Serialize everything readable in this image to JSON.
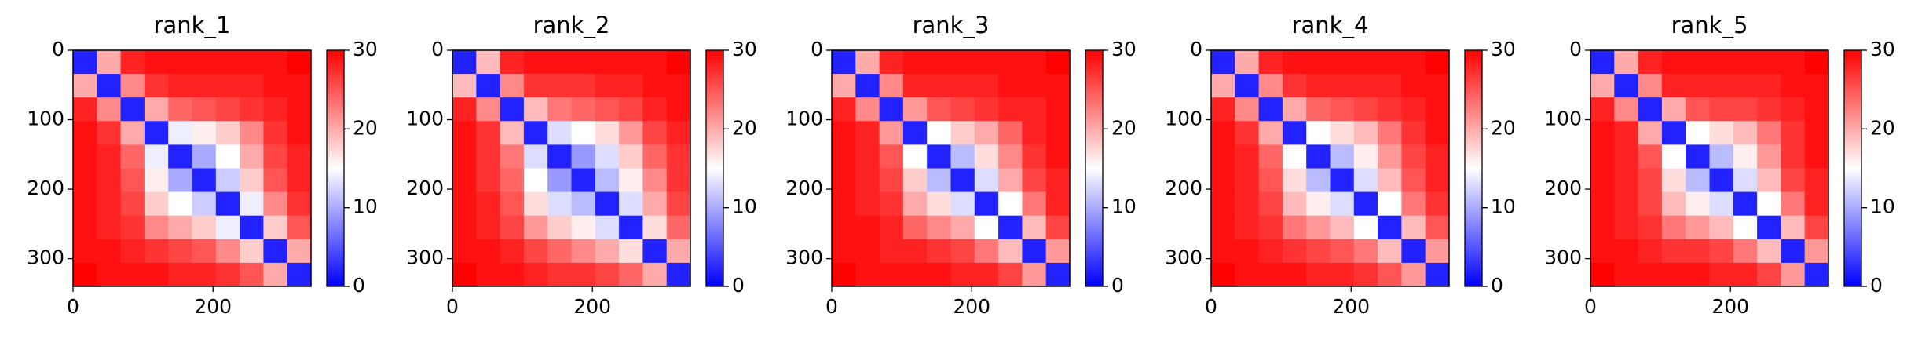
{
  "chart_data": [
    {
      "type": "heatmap",
      "title": "rank_1",
      "xlim": [
        0,
        340
      ],
      "ylim": [
        340,
        0
      ],
      "xticks": [
        0,
        200
      ],
      "yticks": [
        0,
        100,
        200,
        300
      ],
      "clim": [
        0,
        30
      ],
      "cticks": [
        0,
        10,
        20,
        30
      ],
      "colormap": "bwr",
      "matrix": [
        [
          2,
          20,
          28,
          29,
          29,
          29,
          29,
          29,
          29,
          30
        ],
        [
          20,
          2,
          22,
          27,
          28,
          28,
          28,
          28,
          29,
          29
        ],
        [
          28,
          22,
          2,
          20,
          24,
          25,
          26,
          27,
          28,
          29
        ],
        [
          29,
          27,
          20,
          2,
          14,
          16,
          18,
          22,
          27,
          29
        ],
        [
          29,
          28,
          24,
          14,
          2,
          10,
          15,
          20,
          26,
          28
        ],
        [
          29,
          28,
          25,
          16,
          10,
          2,
          12,
          18,
          25,
          28
        ],
        [
          29,
          28,
          26,
          18,
          15,
          12,
          2,
          14,
          22,
          27
        ],
        [
          29,
          28,
          27,
          22,
          20,
          18,
          14,
          2,
          18,
          25
        ],
        [
          29,
          29,
          28,
          27,
          26,
          25,
          22,
          18,
          2,
          20
        ],
        [
          30,
          29,
          29,
          29,
          28,
          28,
          27,
          25,
          20,
          2
        ]
      ]
    },
    {
      "type": "heatmap",
      "title": "rank_2",
      "xlim": [
        0,
        340
      ],
      "ylim": [
        340,
        0
      ],
      "xticks": [
        0,
        200
      ],
      "yticks": [
        0,
        100,
        200,
        300
      ],
      "clim": [
        0,
        30
      ],
      "cticks": [
        0,
        10,
        20,
        30
      ],
      "colormap": "bwr",
      "matrix": [
        [
          2,
          19,
          28,
          29,
          29,
          29,
          29,
          29,
          29,
          30
        ],
        [
          19,
          2,
          22,
          27,
          27,
          27,
          28,
          28,
          29,
          29
        ],
        [
          28,
          22,
          2,
          19,
          23,
          24,
          25,
          26,
          28,
          29
        ],
        [
          29,
          27,
          19,
          2,
          13,
          15,
          17,
          21,
          26,
          28
        ],
        [
          29,
          27,
          23,
          13,
          2,
          9,
          13,
          18,
          24,
          27
        ],
        [
          29,
          27,
          24,
          15,
          9,
          2,
          11,
          16,
          22,
          27
        ],
        [
          29,
          28,
          25,
          17,
          13,
          11,
          2,
          13,
          20,
          26
        ],
        [
          29,
          28,
          26,
          21,
          18,
          16,
          13,
          2,
          17,
          24
        ],
        [
          29,
          29,
          28,
          26,
          24,
          22,
          20,
          17,
          2,
          20
        ],
        [
          30,
          29,
          29,
          28,
          27,
          27,
          26,
          24,
          20,
          2
        ]
      ]
    },
    {
      "type": "heatmap",
      "title": "rank_3",
      "xlim": [
        0,
        340
      ],
      "ylim": [
        340,
        0
      ],
      "xticks": [
        0,
        200
      ],
      "yticks": [
        0,
        100,
        200,
        300
      ],
      "clim": [
        0,
        30
      ],
      "cticks": [
        0,
        10,
        20,
        30
      ],
      "colormap": "bwr",
      "matrix": [
        [
          2,
          20,
          28,
          29,
          29,
          29,
          29,
          29,
          29,
          30
        ],
        [
          20,
          2,
          22,
          28,
          28,
          28,
          28,
          29,
          29,
          29
        ],
        [
          28,
          22,
          2,
          21,
          25,
          26,
          27,
          28,
          28,
          29
        ],
        [
          29,
          28,
          21,
          2,
          15,
          18,
          20,
          24,
          28,
          29
        ],
        [
          29,
          28,
          25,
          15,
          2,
          11,
          17,
          22,
          27,
          29
        ],
        [
          29,
          28,
          26,
          18,
          11,
          2,
          13,
          20,
          26,
          28
        ],
        [
          29,
          28,
          27,
          20,
          17,
          13,
          2,
          15,
          23,
          28
        ],
        [
          29,
          29,
          28,
          24,
          22,
          20,
          15,
          2,
          19,
          26
        ],
        [
          29,
          29,
          28,
          28,
          27,
          26,
          23,
          19,
          2,
          21
        ],
        [
          30,
          29,
          29,
          29,
          29,
          28,
          28,
          26,
          21,
          2
        ]
      ]
    },
    {
      "type": "heatmap",
      "title": "rank_4",
      "xlim": [
        0,
        340
      ],
      "ylim": [
        340,
        0
      ],
      "xticks": [
        0,
        200
      ],
      "yticks": [
        0,
        100,
        200,
        300
      ],
      "clim": [
        0,
        30
      ],
      "cticks": [
        0,
        10,
        20,
        30
      ],
      "colormap": "bwr",
      "matrix": [
        [
          2,
          20,
          28,
          29,
          29,
          29,
          29,
          29,
          29,
          30
        ],
        [
          20,
          2,
          22,
          27,
          28,
          28,
          28,
          28,
          29,
          29
        ],
        [
          28,
          22,
          2,
          20,
          24,
          25,
          26,
          27,
          28,
          29
        ],
        [
          29,
          27,
          20,
          2,
          15,
          17,
          19,
          23,
          27,
          29
        ],
        [
          29,
          28,
          24,
          15,
          2,
          11,
          16,
          21,
          26,
          28
        ],
        [
          29,
          28,
          25,
          17,
          11,
          2,
          13,
          19,
          25,
          28
        ],
        [
          29,
          28,
          26,
          19,
          16,
          13,
          2,
          15,
          23,
          27
        ],
        [
          29,
          28,
          27,
          23,
          21,
          19,
          15,
          2,
          19,
          25
        ],
        [
          29,
          29,
          28,
          27,
          26,
          25,
          23,
          19,
          2,
          21
        ],
        [
          30,
          29,
          29,
          29,
          28,
          28,
          27,
          25,
          21,
          2
        ]
      ]
    },
    {
      "type": "heatmap",
      "title": "rank_5",
      "xlim": [
        0,
        340
      ],
      "ylim": [
        340,
        0
      ],
      "xticks": [
        0,
        200
      ],
      "yticks": [
        0,
        100,
        200,
        300
      ],
      "clim": [
        0,
        30
      ],
      "cticks": [
        0,
        10,
        20,
        30
      ],
      "colormap": "bwr",
      "matrix": [
        [
          2,
          20,
          28,
          29,
          29,
          29,
          29,
          29,
          29,
          30
        ],
        [
          20,
          2,
          22,
          28,
          28,
          28,
          28,
          28,
          29,
          29
        ],
        [
          28,
          22,
          2,
          20,
          25,
          26,
          26,
          27,
          28,
          29
        ],
        [
          29,
          28,
          20,
          2,
          15,
          17,
          19,
          23,
          27,
          29
        ],
        [
          29,
          28,
          25,
          15,
          2,
          11,
          16,
          21,
          27,
          29
        ],
        [
          29,
          28,
          26,
          17,
          11,
          2,
          13,
          19,
          26,
          28
        ],
        [
          29,
          28,
          26,
          19,
          16,
          13,
          2,
          15,
          23,
          28
        ],
        [
          29,
          28,
          27,
          23,
          21,
          19,
          15,
          2,
          19,
          26
        ],
        [
          29,
          29,
          28,
          27,
          27,
          26,
          23,
          19,
          2,
          21
        ],
        [
          30,
          29,
          29,
          29,
          29,
          28,
          28,
          26,
          21,
          2
        ]
      ]
    }
  ]
}
